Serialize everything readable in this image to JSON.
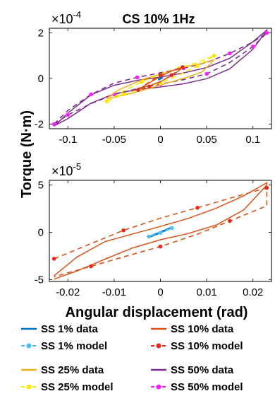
{
  "title": "CS 10% 1Hz",
  "ylabel": "Torque (N·m)",
  "xlabel": "Angular displacement (rad)",
  "colors": {
    "ss1": "#0072bd",
    "ss1_model": "#4dbeee",
    "ss10": "#d95319",
    "ss10_model": "#e8261a",
    "ss25": "#edb120",
    "ss25_model": "#ffe600",
    "ss50": "#7e2f8e",
    "ss50_model": "#ff1cff"
  },
  "legend": [
    {
      "key": "ss1",
      "label": "SS 1% data",
      "kind": "line"
    },
    {
      "key": "ss10",
      "label": "SS 10% data",
      "kind": "line"
    },
    {
      "key": "ss1_model",
      "label": "SS 1% model",
      "kind": "model"
    },
    {
      "key": "ss10_model",
      "label": "SS 10% model",
      "kind": "model"
    },
    {
      "key": "ss25",
      "label": "SS 25% data",
      "kind": "line"
    },
    {
      "key": "ss50",
      "label": "SS 50% data",
      "kind": "line"
    },
    {
      "key": "ss25_model",
      "label": "SS 25% model",
      "kind": "model"
    },
    {
      "key": "ss50_model",
      "label": "SS 50% model",
      "kind": "model"
    }
  ],
  "chart_data": [
    {
      "type": "line",
      "title": "CS 10% 1Hz",
      "exponent_label": "×10",
      "exponent_power": "-4",
      "scale": 0.0001,
      "xlim": [
        -0.12,
        0.12
      ],
      "ylim": [
        -2.2,
        2.2
      ],
      "xticks": [
        -0.1,
        -0.05,
        0,
        0.05,
        0.1
      ],
      "xtick_labels": [
        "-0.1",
        "-0.05",
        "0",
        "0.05",
        "0.1"
      ],
      "yticks": [
        -2,
        0,
        2
      ],
      "ytick_labels": [
        "-2",
        "0",
        "2"
      ],
      "series": [
        {
          "key": "ss50",
          "name": "SS 50% data",
          "amplitude": 0.115,
          "upper": [
            [
              -0.115,
              -2.1
            ],
            [
              -0.1,
              -1.55
            ],
            [
              -0.075,
              -0.75
            ],
            [
              -0.05,
              -0.3
            ],
            [
              -0.025,
              -0.05
            ],
            [
              0,
              0.1
            ],
            [
              0.025,
              0.25
            ],
            [
              0.05,
              0.45
            ],
            [
              0.075,
              0.85
            ],
            [
              0.1,
              1.6
            ],
            [
              0.115,
              2.15
            ]
          ],
          "lower": [
            [
              0.115,
              2.15
            ],
            [
              0.1,
              1.3
            ],
            [
              0.075,
              0.4
            ],
            [
              0.05,
              -0.05
            ],
            [
              0.025,
              -0.25
            ],
            [
              0,
              -0.35
            ],
            [
              -0.025,
              -0.45
            ],
            [
              -0.05,
              -0.65
            ],
            [
              -0.075,
              -1.1
            ],
            [
              -0.1,
              -1.8
            ],
            [
              -0.115,
              -2.1
            ]
          ]
        },
        {
          "key": "ss50_model",
          "name": "SS 50% model",
          "amplitude": 0.115,
          "upper": [
            [
              -0.115,
              -2.0
            ],
            [
              -0.1,
              -1.4
            ],
            [
              -0.075,
              -0.7
            ],
            [
              -0.05,
              -0.2
            ],
            [
              -0.025,
              0.05
            ],
            [
              0,
              0.25
            ],
            [
              0.025,
              0.45
            ],
            [
              0.05,
              0.7
            ],
            [
              0.075,
              1.1
            ],
            [
              0.1,
              1.6
            ],
            [
              0.115,
              2.0
            ]
          ],
          "lower": [
            [
              0.115,
              2.0
            ],
            [
              0.1,
              1.4
            ],
            [
              0.075,
              0.7
            ],
            [
              0.05,
              0.2
            ],
            [
              0.025,
              -0.05
            ],
            [
              0,
              -0.25
            ],
            [
              -0.025,
              -0.45
            ],
            [
              -0.05,
              -0.7
            ],
            [
              -0.075,
              -1.1
            ],
            [
              -0.1,
              -1.6
            ],
            [
              -0.115,
              -2.0
            ]
          ]
        },
        {
          "key": "ss25",
          "name": "SS 25% data",
          "amplitude": 0.058,
          "upper": [
            [
              -0.058,
              -0.9
            ],
            [
              -0.045,
              -0.5
            ],
            [
              -0.03,
              -0.2
            ],
            [
              -0.015,
              0.05
            ],
            [
              0,
              0.2
            ],
            [
              0.015,
              0.35
            ],
            [
              0.03,
              0.5
            ],
            [
              0.045,
              0.65
            ],
            [
              0.058,
              0.85
            ]
          ],
          "lower": [
            [
              0.058,
              0.85
            ],
            [
              0.045,
              0.3
            ],
            [
              0.03,
              0.05
            ],
            [
              0.015,
              -0.15
            ],
            [
              0,
              -0.3
            ],
            [
              -0.015,
              -0.45
            ],
            [
              -0.03,
              -0.6
            ],
            [
              -0.045,
              -0.75
            ],
            [
              -0.058,
              -0.9
            ]
          ]
        },
        {
          "key": "ss25_model",
          "name": "SS 25% model",
          "amplitude": 0.058,
          "upper": [
            [
              -0.058,
              -1.0
            ],
            [
              -0.04,
              -0.55
            ],
            [
              -0.02,
              -0.15
            ],
            [
              0,
              0.2
            ],
            [
              0.02,
              0.45
            ],
            [
              0.04,
              0.7
            ],
            [
              0.058,
              1.0
            ]
          ],
          "lower": [
            [
              0.058,
              1.0
            ],
            [
              0.04,
              0.55
            ],
            [
              0.02,
              0.15
            ],
            [
              0,
              -0.2
            ],
            [
              -0.02,
              -0.45
            ],
            [
              -0.04,
              -0.7
            ],
            [
              -0.058,
              -1.0
            ]
          ]
        },
        {
          "key": "ss10",
          "name": "SS 10% data",
          "amplitude": 0.024,
          "upper": [
            [
              -0.024,
              -0.45
            ],
            [
              -0.012,
              -0.15
            ],
            [
              0,
              0.1
            ],
            [
              0.012,
              0.3
            ],
            [
              0.024,
              0.45
            ]
          ],
          "lower": [
            [
              0.024,
              0.45
            ],
            [
              0.012,
              0.15
            ],
            [
              0,
              -0.1
            ],
            [
              -0.012,
              -0.3
            ],
            [
              -0.024,
              -0.45
            ]
          ]
        },
        {
          "key": "ss10_model",
          "name": "SS 10% model",
          "amplitude": 0.024,
          "upper": [
            [
              -0.024,
              -0.5
            ],
            [
              -0.012,
              -0.15
            ],
            [
              0,
              0.15
            ],
            [
              0.012,
              0.35
            ],
            [
              0.024,
              0.5
            ]
          ],
          "lower": [
            [
              0.024,
              0.5
            ],
            [
              0.012,
              0.15
            ],
            [
              0,
              -0.15
            ],
            [
              -0.012,
              -0.35
            ],
            [
              -0.024,
              -0.5
            ]
          ]
        },
        {
          "key": "ss1",
          "name": "SS 1% data",
          "amplitude": 0.0024,
          "upper": [
            [
              -0.0024,
              -0.05
            ],
            [
              0,
              0.0
            ],
            [
              0.0024,
              0.05
            ]
          ],
          "lower": [
            [
              0.0024,
              0.05
            ],
            [
              0,
              0.0
            ],
            [
              -0.0024,
              -0.05
            ]
          ]
        }
      ]
    },
    {
      "type": "line",
      "exponent_label": "×10",
      "exponent_power": "-5",
      "scale": 1e-05,
      "xlim": [
        -0.024,
        0.024
      ],
      "ylim": [
        -5.2,
        5.5
      ],
      "xticks": [
        -0.02,
        -0.01,
        0,
        0.01,
        0.02
      ],
      "xtick_labels": [
        "-0.02",
        "-0.01",
        "0",
        "0.01",
        "0.02"
      ],
      "yticks": [
        -5,
        0,
        5
      ],
      "ytick_labels": [
        "-5",
        "0",
        "5"
      ],
      "series": [
        {
          "key": "ss10",
          "name": "SS 10% data",
          "amplitude": 0.023,
          "upper": [
            [
              -0.023,
              -4.6
            ],
            [
              -0.018,
              -2.9
            ],
            [
              -0.012,
              -1.3
            ],
            [
              -0.006,
              -0.2
            ],
            [
              0,
              0.9
            ],
            [
              0.006,
              1.8
            ],
            [
              0.012,
              2.6
            ],
            [
              0.018,
              3.6
            ],
            [
              0.023,
              4.9
            ]
          ],
          "lower": [
            [
              0.023,
              4.9
            ],
            [
              0.018,
              2.6
            ],
            [
              0.012,
              1.1
            ],
            [
              0.006,
              0.0
            ],
            [
              0,
              -1.0
            ],
            [
              -0.006,
              -2.0
            ],
            [
              -0.012,
              -3.0
            ],
            [
              -0.018,
              -3.9
            ],
            [
              -0.023,
              -4.6
            ]
          ]
        },
        {
          "key": "ss10_model",
          "name": "SS 10% model",
          "amplitude": 0.023,
          "upper": [
            [
              -0.023,
              -2.8
            ],
            [
              -0.015,
              -1.2
            ],
            [
              -0.008,
              0.2
            ],
            [
              0,
              1.5
            ],
            [
              0.008,
              2.6
            ],
            [
              0.015,
              3.6
            ],
            [
              0.023,
              4.7
            ]
          ],
          "lower": [
            [
              0.023,
              2.8
            ],
            [
              0.015,
              1.2
            ],
            [
              0.008,
              -0.2
            ],
            [
              0,
              -1.5
            ],
            [
              -0.008,
              -2.6
            ],
            [
              -0.015,
              -3.6
            ],
            [
              -0.023,
              -4.7
            ]
          ]
        },
        {
          "key": "ss1",
          "name": "SS 1% data",
          "amplitude": 0.0025,
          "upper": [
            [
              -0.0025,
              -0.5
            ],
            [
              0,
              0.0
            ],
            [
              0.0025,
              0.5
            ]
          ],
          "lower": [
            [
              0.0025,
              0.5
            ],
            [
              0,
              0.0
            ],
            [
              -0.0025,
              -0.5
            ]
          ]
        },
        {
          "key": "ss1_model",
          "name": "SS 1% model",
          "amplitude": 0.0025,
          "upper": [
            [
              -0.0025,
              -0.45
            ],
            [
              0,
              0.05
            ],
            [
              0.0025,
              0.45
            ]
          ],
          "lower": [
            [
              0.0025,
              0.45
            ],
            [
              0,
              -0.05
            ],
            [
              -0.0025,
              -0.45
            ]
          ]
        }
      ]
    }
  ]
}
